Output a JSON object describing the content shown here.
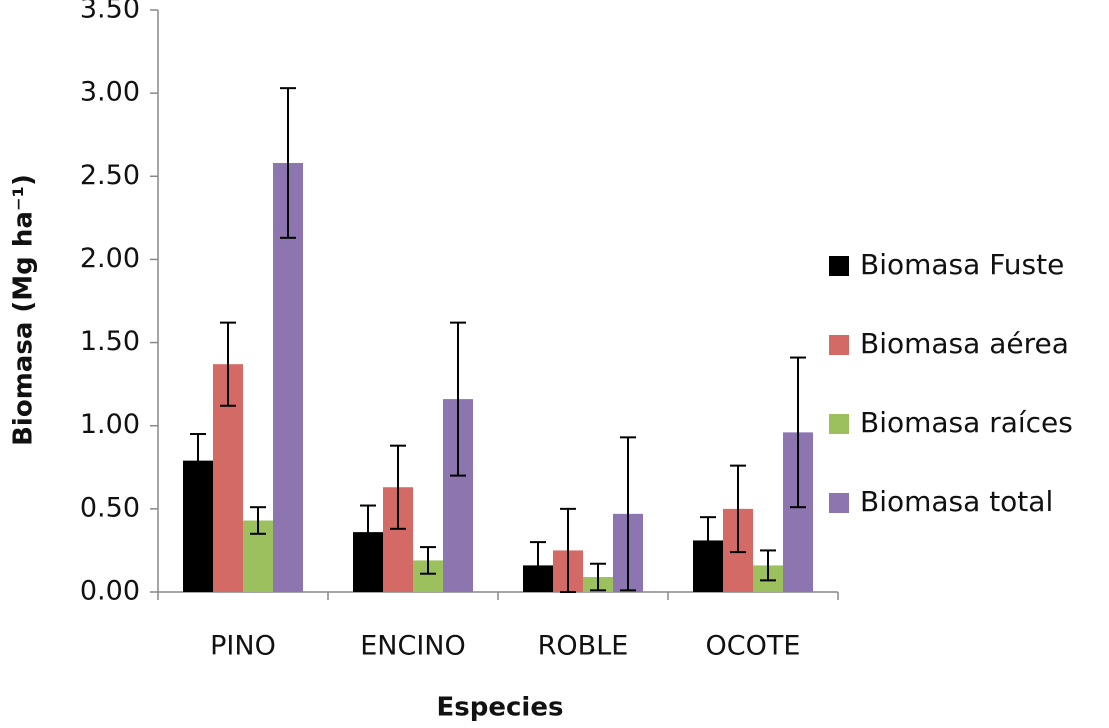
{
  "chart_data": {
    "type": "bar",
    "x_label": "Especies",
    "y_label": "Biomasa (Mg ha⁻¹)",
    "categories": [
      "PINO",
      "ENCINO",
      "ROBLE",
      "OCOTE"
    ],
    "series": [
      {
        "name": "Biomasa Fuste",
        "color": "#000000",
        "values": [
          0.79,
          0.36,
          0.16,
          0.31
        ],
        "errors": [
          0.16,
          0.16,
          0.14,
          0.14
        ]
      },
      {
        "name": "Biomasa aérea",
        "color": "#d46a66",
        "values": [
          1.37,
          0.63,
          0.25,
          0.5
        ],
        "errors": [
          0.25,
          0.25,
          0.25,
          0.26
        ]
      },
      {
        "name": "Biomasa raíces",
        "color": "#9dc05e",
        "values": [
          0.43,
          0.19,
          0.09,
          0.16
        ],
        "errors": [
          0.08,
          0.08,
          0.08,
          0.09
        ]
      },
      {
        "name": "Biomasa total",
        "color": "#8d76b0",
        "values": [
          2.58,
          1.16,
          0.47,
          0.96
        ],
        "errors": [
          0.45,
          0.46,
          0.46,
          0.45
        ]
      }
    ],
    "ylim": [
      0,
      3.5
    ],
    "yticks": [
      {
        "value": 0,
        "label": "0.00"
      },
      {
        "value": 0.5,
        "label": "0.50"
      },
      {
        "value": 1,
        "label": "1.00"
      },
      {
        "value": 1.5,
        "label": "1.50"
      },
      {
        "value": 2,
        "label": "2.00"
      },
      {
        "value": 2.5,
        "label": "2.50"
      },
      {
        "value": 3,
        "label": "3.00"
      },
      {
        "value": 3.5,
        "label": "3.50"
      }
    ],
    "legend": "right",
    "grid": false
  }
}
